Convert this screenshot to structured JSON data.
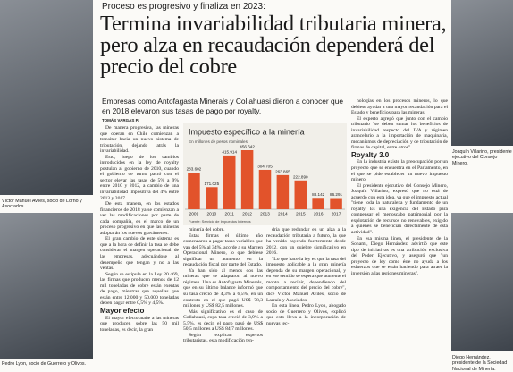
{
  "kicker": "Proceso es progresivo y finaliza en 2023:",
  "headline": "Termina invariabilidad tributaria minera, pero alza en recaudación dependerá del precio del cobre",
  "lead": "Empresas como Antofagasta Minerals y Collahuasi dieron a conocer que en 2018 elevaron sus tasas de pago por royalty.",
  "byline": "TOMÁS VARGAS P.",
  "captions": [
    "Víctor Manuel Avilés, socio de Lorno y Asociados.",
    "Pedro Lyon, socio de Guerrero y Olivos.",
    "Joaquín Villarino, presidente ejecutivo del Consejo Minero.",
    "Diego Hernández, presidente de la Sociedad Nacional de Minería."
  ],
  "chart_data": {
    "type": "bar",
    "title": "Impuesto específico a la minería",
    "subtitle": "En millones de pesos nominales",
    "categories": [
      "2009",
      "2010",
      "2011",
      "2012",
      "2013",
      "2014",
      "2015",
      "2016",
      "2017"
    ],
    "values": [
      283602,
      171025,
      415914,
      456642,
      304705,
      263865,
      222890,
      88142,
      86291
    ],
    "value_labels": [
      "283.602",
      "171.025",
      "415.914",
      "456.642",
      "304.705",
      "263.865",
      "222.890",
      "88.142",
      "86.291"
    ],
    "color": "#e2532b",
    "source": "Fuente: Servicio de Impuestos Internos"
  },
  "columns": [
    {
      "paragraphs": [
        "De manera progresiva, las mineras que operan en Chile comienzan a transitar hacia un nuevo sistema de tributación, dejando atrás la invariabilidad.",
        "Esto, luego de los cambios introducidos en la ley de royalty postulan al gobierno de 2010, cuando el gobierno de turno pactó con el sector elevar las tasas de 5% a 9% entre 2010 y 2012, a cambio de una invariabilidad impositiva del 4% entre 2013 y 2017.",
        "De esta manera, en los estados financieros de 2018 ya se comienzan a ver las modificaciones por parte de cada compañía, en el marco de un proceso progresivo en que las mineras adoptarán los nuevos gravámenes.",
        "El gran cambio de este sistema es que a la hora de definir la tasa se debe considerar el margen operacional de las empresas, adecuándose al desempeño que tengan y no a las ventas.",
        "Según se estipula en la Ley 20.469, las firmas que producen menos de 12 mil toneladas de cobre están exentas de pago, mientras que aquellas que están entre 12.000 y 50.000 toneladas deben pagar entre 0,5% y 4,5%."
      ],
      "section": {
        "heading": "Mayor efecto",
        "paragraphs": [
          "El mayor efecto atañe a las mineras que producen sobre las 50 mil toneladas, es decir, la gran"
        ]
      }
    },
    {
      "paragraphs": [
        "minería del cobre.",
        "Estas firmas el último año comenzaron a pagar tasas variables que van del 5% al 34%, acorde a su Margen Operacional Minero, lo que debiese significar un aumento en la recaudación fiscal por parte del Estado.",
        "Ya han sido al menos dos las mineras que se adaptaron al nuevo régimen. Una es Antofagasta Minerals, que en su último balance informó que su tasa creció de 4,3% a 6,5%, en un contexto en el que pagó US$ 78,3 millones y US$ 82,5 millones.",
        "Más significativo es el caso de Collahuasi, cuya tasa creció de 3,9% a 5,5%, es decir, el pago pasó de US$ 50,5 millones a US$ 84,7 millones.",
        "Según explican expertos tributaristas, esta modificación ten-"
      ]
    },
    {
      "paragraphs": [
        "dría que redundar en un alza a la recaudación tributaria a futuro, la que ha venido cayendo fuertemente desde 2012, con un quiebre significativo en 2016.",
        "\"Lo que hace la ley es que la tasa del impuesto aplicable a la gran minería dependa de su margen operacional, y en ese sentido se espera que aumente el monto a recibir, dependiendo del comportamiento del precio del cobre\", dice Víctor Manuel Avilés, socio de Larraín y Asociados.",
        "En esta línea, Pedro Lyon, abogado socio de Guerrero y Olivos, explicó que esto lleva a la incorporación de nuevas tec-"
      ]
    },
    {
      "paragraphs": [
        "nologías en los procesos mineros, lo que debiese ayudar a una mayor recaudación para el Estado y beneficios para las mineras.",
        "El experto agregó que junto con el cambio tributario \"se deben sumar los beneficios de invariabilidad respecto del IVA y régimen arancelario a la importación de maquinaria, mecanismos de depreciación y de tributación de firmas de capital, entre otros\"."
      ],
      "section": {
        "heading": "Royalty 3.0",
        "paragraphs": [
          "En la industria existe la preocupación por un proyecto que se encuentra en el Parlamento, en el que se pide establecer un nuevo impuesto minero.",
          "El presidente ejecutivo del Consejo Minero, Joaquín Villarino, expresó que no está de acuerdo con esta idea, ya que el impuesto actual \"tiene toda la naturaleza y fundamento de un royalty. Es una exigencia del Estado para compensar el menoscabo patrimonial por la explotación de recursos no renovables, exigido a quienes se benefician directamente de esta actividad\".",
          "En esa misma línea, el presidente de la Sonami, Diego Hernández, advirtió que este tipo de iniciativas es una atribución exclusiva del Poder Ejecutivo, y aseguró que \"un proyecto de ley como éste no ayuda a los esfuerzos que se están haciendo para atraer la inversión a las regiones mineras\"."
        ]
      }
    }
  ]
}
